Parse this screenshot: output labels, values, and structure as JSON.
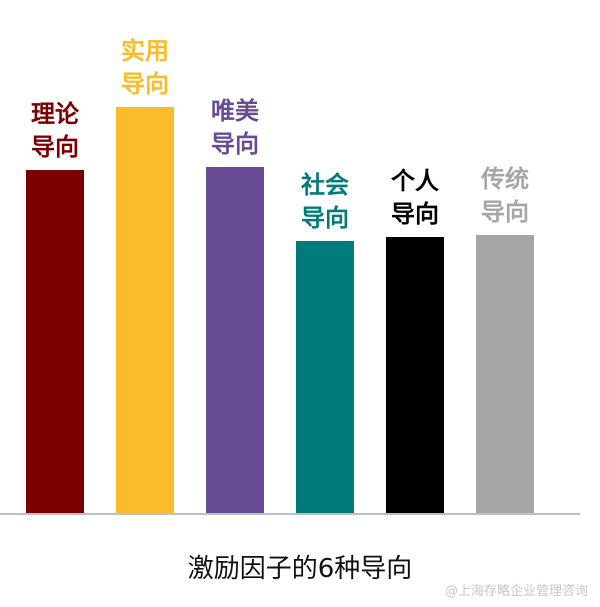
{
  "chart_data": {
    "type": "bar",
    "title": "激励因子的6种导向",
    "watermark": "@上海存略企业管理咨询",
    "categories": [
      "理论导向",
      "实用导向",
      "唯美导向",
      "社会导向",
      "个人导向",
      "传统导向"
    ],
    "values": [
      343,
      406,
      346,
      272,
      276,
      278
    ],
    "colors": [
      "#7b0000",
      "#fbbc2c",
      "#674b93",
      "#007b7b",
      "#000000",
      "#a6a6a6"
    ],
    "ylim": [
      0,
      513
    ]
  }
}
